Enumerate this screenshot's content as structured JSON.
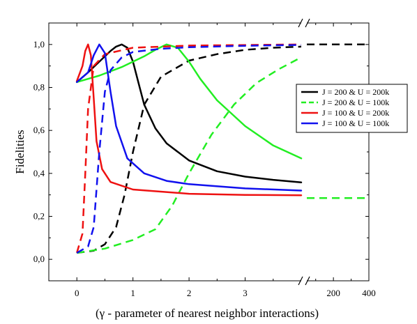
{
  "chart_data": {
    "type": "line",
    "title": "",
    "xlabel": "(γ - parameter of nearest neighbor interactions)",
    "ylabel": "Fidelities",
    "ylim": [
      -0.1,
      1.1
    ],
    "y_ticks": [
      0.0,
      0.2,
      0.4,
      0.6,
      0.8,
      1.0
    ],
    "y_tick_labels": [
      "0,0",
      "0,2",
      "0,4",
      "0,6",
      "0,8",
      "1,0"
    ],
    "x_axis": {
      "broken": true,
      "left_segment": {
        "range": [
          -0.5,
          4.0
        ],
        "ticks": [
          0,
          1,
          2,
          3
        ],
        "tick_labels": [
          "0",
          "1",
          "2",
          "3"
        ]
      },
      "right_segment": {
        "range": [
          50,
          400
        ],
        "ticks": [
          200,
          400
        ],
        "tick_labels": [
          "200",
          "400"
        ]
      }
    },
    "grid": false,
    "legend_position": "right",
    "legend": [
      {
        "label": "J = 200 & U = 200k",
        "color": "#000000",
        "dash": "solid"
      },
      {
        "label": "J = 200 & U = 100k",
        "color": "#22ee22",
        "dash": "dashed"
      },
      {
        "label": "J = 100 & U = 200k",
        "color": "#ee1111",
        "dash": "solid"
      },
      {
        "label": "J = 100 & U = 100k",
        "color": "#1111ee",
        "dash": "solid"
      }
    ],
    "series": [
      {
        "color": "#000000",
        "dash": "solid",
        "left": [
          [
            0,
            0.825
          ],
          [
            0.2,
            0.87
          ],
          [
            0.4,
            0.92
          ],
          [
            0.6,
            0.97
          ],
          [
            0.7,
            0.99
          ],
          [
            0.8,
            1.0
          ],
          [
            0.9,
            0.985
          ],
          [
            1.0,
            0.92
          ],
          [
            1.1,
            0.82
          ],
          [
            1.2,
            0.72
          ],
          [
            1.4,
            0.61
          ],
          [
            1.6,
            0.54
          ],
          [
            2.0,
            0.46
          ],
          [
            2.5,
            0.41
          ],
          [
            3.0,
            0.385
          ],
          [
            3.5,
            0.37
          ],
          [
            4.0,
            0.358
          ]
        ],
        "right": []
      },
      {
        "color": "#000000",
        "dash": "dashed",
        "left": [
          [
            0,
            0.03
          ],
          [
            0.3,
            0.04
          ],
          [
            0.5,
            0.07
          ],
          [
            0.7,
            0.15
          ],
          [
            0.85,
            0.3
          ],
          [
            1.0,
            0.5
          ],
          [
            1.2,
            0.72
          ],
          [
            1.5,
            0.85
          ],
          [
            2.0,
            0.925
          ],
          [
            2.5,
            0.955
          ],
          [
            3.0,
            0.975
          ],
          [
            3.5,
            0.985
          ],
          [
            4.0,
            0.99
          ]
        ],
        "right": [
          [
            50,
            1.0
          ],
          [
            400,
            1.0
          ]
        ]
      },
      {
        "color": "#22ee22",
        "dash": "solid",
        "left": [
          [
            0,
            0.825
          ],
          [
            0.4,
            0.855
          ],
          [
            0.8,
            0.895
          ],
          [
            1.2,
            0.945
          ],
          [
            1.4,
            0.975
          ],
          [
            1.6,
            1.0
          ],
          [
            1.8,
            0.985
          ],
          [
            2.0,
            0.92
          ],
          [
            2.2,
            0.84
          ],
          [
            2.5,
            0.74
          ],
          [
            3.0,
            0.62
          ],
          [
            3.5,
            0.53
          ],
          [
            4.0,
            0.47
          ]
        ],
        "right": []
      },
      {
        "color": "#22ee22",
        "dash": "dashed",
        "left": [
          [
            0,
            0.03
          ],
          [
            0.5,
            0.05
          ],
          [
            1.0,
            0.09
          ],
          [
            1.4,
            0.14
          ],
          [
            1.7,
            0.25
          ],
          [
            2.0,
            0.4
          ],
          [
            2.4,
            0.58
          ],
          [
            2.8,
            0.72
          ],
          [
            3.2,
            0.82
          ],
          [
            3.6,
            0.885
          ],
          [
            4.0,
            0.94
          ]
        ],
        "right": [
          [
            50,
            0.285
          ],
          [
            400,
            0.285
          ]
        ]
      },
      {
        "color": "#ee1111",
        "dash": "solid",
        "left": [
          [
            0,
            0.83
          ],
          [
            0.1,
            0.9
          ],
          [
            0.15,
            0.97
          ],
          [
            0.2,
            1.0
          ],
          [
            0.25,
            0.95
          ],
          [
            0.3,
            0.75
          ],
          [
            0.35,
            0.55
          ],
          [
            0.45,
            0.42
          ],
          [
            0.6,
            0.36
          ],
          [
            1.0,
            0.325
          ],
          [
            2.0,
            0.305
          ],
          [
            3.0,
            0.3
          ],
          [
            4.0,
            0.298
          ]
        ],
        "right": []
      },
      {
        "color": "#ee1111",
        "dash": "dashed",
        "left": [
          [
            0,
            0.03
          ],
          [
            0.1,
            0.12
          ],
          [
            0.15,
            0.4
          ],
          [
            0.2,
            0.7
          ],
          [
            0.3,
            0.9
          ],
          [
            0.5,
            0.955
          ],
          [
            1.0,
            0.985
          ],
          [
            2.0,
            0.995
          ],
          [
            4.0,
            1.0
          ]
        ],
        "right": []
      },
      {
        "color": "#1111ee",
        "dash": "solid",
        "left": [
          [
            0,
            0.825
          ],
          [
            0.2,
            0.87
          ],
          [
            0.3,
            0.95
          ],
          [
            0.4,
            1.0
          ],
          [
            0.5,
            0.96
          ],
          [
            0.6,
            0.78
          ],
          [
            0.7,
            0.62
          ],
          [
            0.9,
            0.47
          ],
          [
            1.2,
            0.4
          ],
          [
            1.6,
            0.365
          ],
          [
            2.0,
            0.35
          ],
          [
            3.0,
            0.33
          ],
          [
            4.0,
            0.32
          ]
        ],
        "right": []
      },
      {
        "color": "#1111ee",
        "dash": "dashed",
        "left": [
          [
            0,
            0.03
          ],
          [
            0.2,
            0.06
          ],
          [
            0.3,
            0.15
          ],
          [
            0.4,
            0.5
          ],
          [
            0.5,
            0.78
          ],
          [
            0.6,
            0.88
          ],
          [
            0.8,
            0.94
          ],
          [
            1.0,
            0.965
          ],
          [
            1.5,
            0.98
          ],
          [
            2.0,
            0.987
          ],
          [
            3.0,
            0.994
          ],
          [
            4.0,
            0.998
          ]
        ],
        "right": []
      }
    ]
  }
}
